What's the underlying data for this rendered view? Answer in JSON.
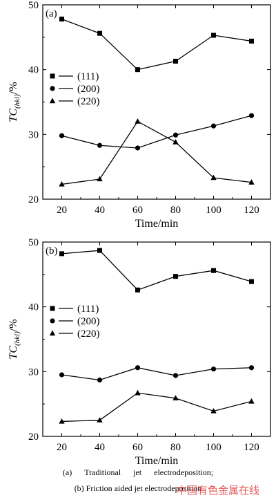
{
  "chart_data": [
    {
      "type": "line",
      "panel_label": "(a)",
      "xlabel": "Time/min",
      "ylabel_main": "TC",
      "ylabel_sub": "(hkl)",
      "ylabel_unit": "/%",
      "xlim": [
        10,
        130
      ],
      "ylim": [
        20,
        50
      ],
      "x_ticks": [
        20,
        40,
        60,
        80,
        100,
        120
      ],
      "y_ticks": [
        20,
        30,
        40,
        50
      ],
      "grid": false,
      "legend_position": "left-middle",
      "x": [
        20,
        40,
        60,
        80,
        100,
        120
      ],
      "series": [
        {
          "name": "(111)",
          "marker": "square",
          "values": [
            47.8,
            45.6,
            40.0,
            41.3,
            45.3,
            44.4
          ]
        },
        {
          "name": "(200)",
          "marker": "circle",
          "values": [
            29.8,
            28.3,
            27.9,
            29.9,
            31.3,
            32.9
          ]
        },
        {
          "name": "(220)",
          "marker": "triangle",
          "values": [
            22.3,
            23.1,
            32.0,
            28.8,
            23.3,
            22.6
          ]
        }
      ]
    },
    {
      "type": "line",
      "panel_label": "(b)",
      "xlabel": "Time/min",
      "ylabel_main": "TC",
      "ylabel_sub": "(hkl)",
      "ylabel_unit": "/%",
      "xlim": [
        10,
        130
      ],
      "ylim": [
        20,
        50
      ],
      "x_ticks": [
        20,
        40,
        60,
        80,
        100,
        120
      ],
      "y_ticks": [
        20,
        30,
        40,
        50
      ],
      "grid": false,
      "legend_position": "left-middle",
      "x": [
        20,
        40,
        60,
        80,
        100,
        120
      ],
      "series": [
        {
          "name": "(111)",
          "marker": "square",
          "values": [
            48.2,
            48.7,
            42.6,
            44.7,
            45.6,
            43.9
          ]
        },
        {
          "name": "(200)",
          "marker": "circle",
          "values": [
            29.5,
            28.7,
            30.6,
            29.4,
            30.4,
            30.6
          ]
        },
        {
          "name": "(220)",
          "marker": "triangle",
          "values": [
            22.3,
            22.5,
            26.7,
            25.9,
            23.9,
            25.4
          ]
        }
      ]
    }
  ],
  "caption": {
    "line_a": [
      "(a)",
      "Traditional",
      "jet",
      "electrodeposition;"
    ],
    "line_b": "(b) Friction aided jet electrodeposition"
  },
  "watermark": "中国有色金属在线",
  "colors": {
    "ink": "#000000",
    "watermark": "#e23b3b"
  }
}
